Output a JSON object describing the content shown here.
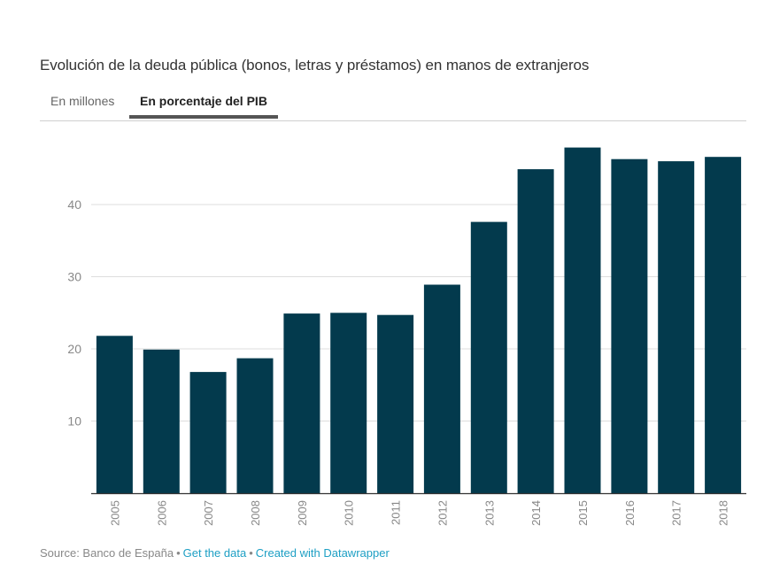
{
  "title": "Evolución de la deuda pública (bonos, letras y préstamos) en manos de extranjeros",
  "tabs": [
    {
      "label": "En millones",
      "active": false
    },
    {
      "label": "En porcentaje del PIB",
      "active": true
    }
  ],
  "footer": {
    "source": "Source: Banco de España",
    "separator": "•",
    "get_data": "Get the data",
    "created_with": "Created with Datawrapper"
  },
  "colors": {
    "bar": "#033a4d",
    "grid": "#dddddd",
    "axis": "#333333",
    "link": "#1d9fc4"
  },
  "chart_data": {
    "type": "bar",
    "title": "Evolución de la deuda pública (bonos, letras y préstamos) en manos de extranjeros",
    "xlabel": "",
    "ylabel": "",
    "categories": [
      "2005",
      "2006",
      "2007",
      "2008",
      "2009",
      "2010",
      "2011",
      "2012",
      "2013",
      "2014",
      "2015",
      "2016",
      "2017",
      "2018"
    ],
    "values": [
      21.8,
      19.9,
      16.8,
      18.7,
      24.9,
      25.0,
      24.7,
      28.9,
      37.6,
      44.9,
      47.9,
      46.3,
      46.0,
      46.6
    ],
    "yticks": [
      10,
      20,
      30,
      40
    ],
    "ytick_labels": [
      "10",
      "20",
      "30",
      "40"
    ],
    "ylim": [
      0,
      50
    ],
    "grid": true,
    "legend": "none",
    "unit": "% del PIB"
  }
}
